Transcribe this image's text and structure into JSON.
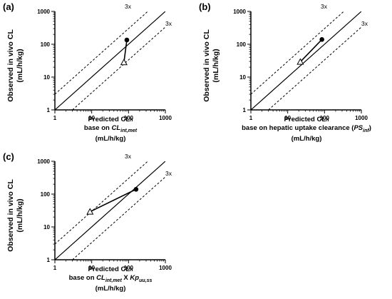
{
  "chart_data": [
    {
      "type": "scatter",
      "panel_label": "(a)",
      "ylabel_line1": "Observed in vivo CL",
      "ylabel_line2": "(mL/h/kg)",
      "xlabel_line1_main": "Predicted CL",
      "xlabel_line1_sub": "h",
      "xlabel_line2_prefix": "base on ",
      "xlabel_line2_italic": "CL",
      "xlabel_line2_italic_sub": "int,met",
      "xlabel_line2_mid": "",
      "xlabel_line2_italic2": "",
      "xlabel_line2_italic2_sub": "",
      "xlabel_line2_suffix": "",
      "xlabel_line3": "(mL/h/kg)",
      "xscale": "log",
      "yscale": "log",
      "xlim": [
        1,
        1000
      ],
      "ylim": [
        1,
        1000
      ],
      "xticks": [
        "1",
        "10",
        "100",
        "1000"
      ],
      "yticks": [
        "1",
        "10",
        "100",
        "1000"
      ],
      "fold_label_upper": "3x",
      "fold_label_lower": "3x",
      "points": [
        {
          "marker": "open-triangle",
          "x": 75,
          "y": 28
        },
        {
          "marker": "filled-circle",
          "x": 90,
          "y": 135
        }
      ]
    },
    {
      "type": "scatter",
      "panel_label": "(b)",
      "ylabel_line1": "Observed in vivo CL",
      "ylabel_line2": "(mL/h/kg)",
      "xlabel_line1_main": "Predicted CL",
      "xlabel_line1_sub": "h",
      "xlabel_line2_prefix": "base on hepatic uptake clearance (",
      "xlabel_line2_italic": "PS",
      "xlabel_line2_italic_sub": "inf",
      "xlabel_line2_mid": "",
      "xlabel_line2_italic2": "",
      "xlabel_line2_italic2_sub": "",
      "xlabel_line2_suffix": ")",
      "xlabel_line3": "(mL/h/kg)",
      "xscale": "log",
      "yscale": "log",
      "xlim": [
        1,
        1000
      ],
      "ylim": [
        1,
        1000
      ],
      "xticks": [
        "1",
        "10",
        "100",
        "1000"
      ],
      "yticks": [
        "1",
        "10",
        "100",
        "1000"
      ],
      "fold_label_upper": "3x",
      "fold_label_lower": "3x",
      "points": [
        {
          "marker": "open-triangle",
          "x": 22,
          "y": 29
        },
        {
          "marker": "filled-circle",
          "x": 85,
          "y": 140
        }
      ]
    },
    {
      "type": "scatter",
      "panel_label": "(c)",
      "ylabel_line1": "Observed in vivo CL",
      "ylabel_line2": "(mL/h/kg)",
      "xlabel_line1_main": "Predicted CL",
      "xlabel_line1_sub": "h",
      "xlabel_line2_prefix": "base on ",
      "xlabel_line2_italic": "CL",
      "xlabel_line2_italic_sub": "int,met",
      "xlabel_line2_mid": " X ",
      "xlabel_line2_italic2": "Kp",
      "xlabel_line2_italic2_sub": "uu,ss",
      "xlabel_line2_suffix": "",
      "xlabel_line3": "(mL/h/kg)",
      "xscale": "log",
      "yscale": "log",
      "xlim": [
        1,
        1000
      ],
      "ylim": [
        1,
        1000
      ],
      "xticks": [
        "1",
        "10",
        "100",
        "1000"
      ],
      "yticks": [
        "1",
        "10",
        "100",
        "1000"
      ],
      "fold_label_upper": "3x",
      "fold_label_lower": "3x",
      "points": [
        {
          "marker": "open-triangle",
          "x": 9,
          "y": 29
        },
        {
          "marker": "filled-circle",
          "x": 160,
          "y": 140
        }
      ]
    }
  ]
}
